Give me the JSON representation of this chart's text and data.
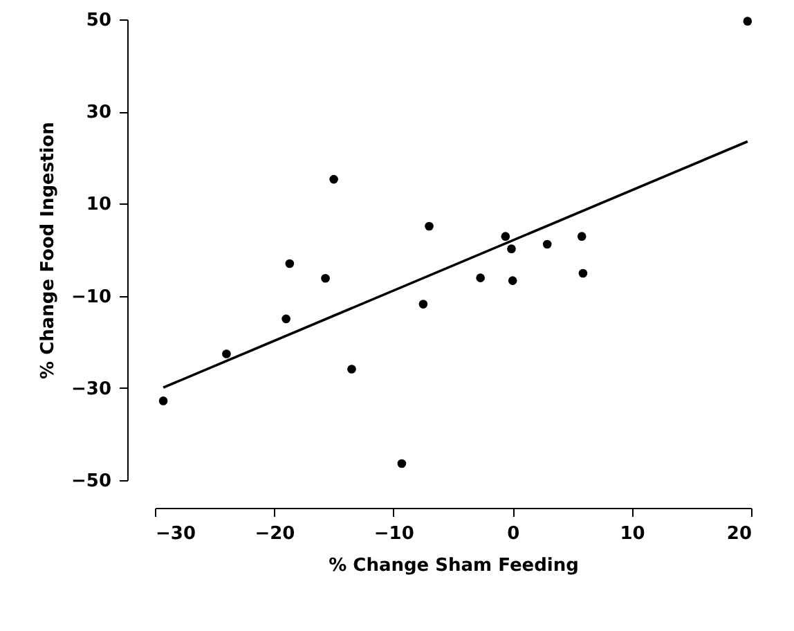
{
  "chart_data": {
    "type": "scatter",
    "xlabel": "% Change Sham Feeding",
    "ylabel": "% Change Food Ingestion",
    "xlim": [
      -30,
      20
    ],
    "ylim": [
      -50,
      50
    ],
    "xticks": [
      -30,
      -20,
      -10,
      0,
      10,
      20
    ],
    "yticks": [
      -50,
      -30,
      -10,
      10,
      30,
      50
    ],
    "grid": false,
    "series": [
      {
        "type": "scatter",
        "marker": "circle",
        "color": "#000000",
        "x": [
          -29.3,
          -24.0,
          -18.7,
          -19.0,
          -15.7,
          -15.0,
          -13.5,
          -9.3,
          -7.5,
          -7.0,
          -2.7,
          -0.6,
          -0.1,
          0.0,
          2.9,
          5.8,
          5.9,
          19.7
        ],
        "values": [
          -32.8,
          -22.6,
          -3.0,
          -15.0,
          -6.2,
          15.3,
          -25.9,
          -46.4,
          -11.8,
          5.1,
          -6.1,
          2.9,
          0.2,
          -6.7,
          1.2,
          2.9,
          -5.1,
          49.6
        ]
      },
      {
        "type": "line",
        "color": "#000000",
        "line_style": "solid",
        "marker": "none",
        "x": [
          -29.3,
          19.7
        ],
        "values": [
          -29.9,
          23.5
        ]
      }
    ]
  }
}
